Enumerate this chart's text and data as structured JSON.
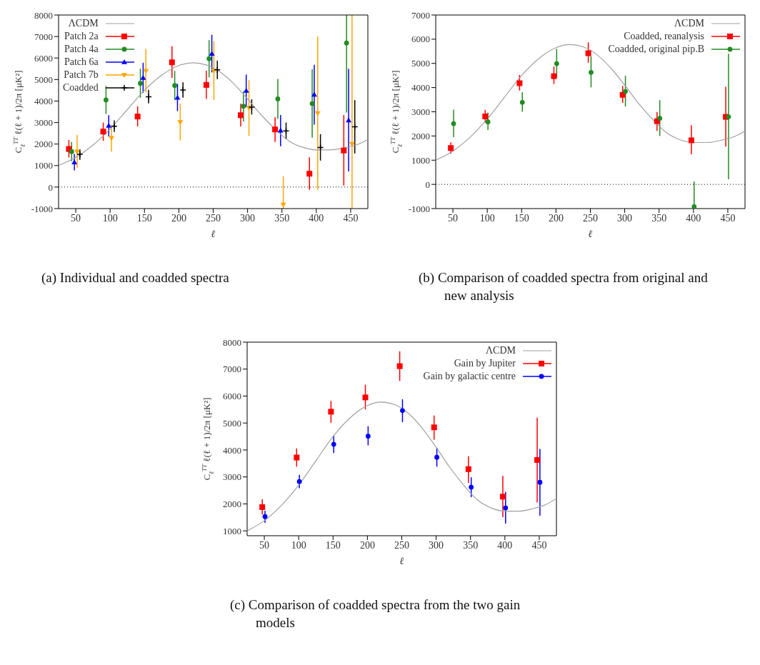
{
  "chart_data": [
    {
      "type": "scatter",
      "title": "(a) Individual and coadded spectra",
      "xlabel": "ℓ",
      "ylabel": "C$_{ℓ}$$^{TT}$ ℓ(ℓ + 1)/2π [μK²]",
      "xlim": [
        25,
        475
      ],
      "xticks": [
        50,
        100,
        150,
        200,
        250,
        300,
        350,
        400,
        450
      ],
      "ylim": [
        -1000,
        8000
      ],
      "yticks": [
        -1000,
        0,
        1000,
        2000,
        3000,
        4000,
        5000,
        6000,
        7000,
        8000
      ],
      "legend": "top left",
      "ref_lines": [
        {
          "axis": "y",
          "value": 0,
          "color": "#000000",
          "line_style": "dotted"
        }
      ],
      "series": [
        {
          "name": "ΛCDM",
          "type": "line",
          "color": "#a0a0a0",
          "marker": "none",
          "line_style": "solid",
          "x": [
            25,
            50,
            75,
            100,
            125,
            150,
            175,
            200,
            220,
            240,
            260,
            280,
            300,
            320,
            340,
            360,
            380,
            400,
            420,
            440,
            460,
            475
          ],
          "values": [
            1000,
            1380,
            1950,
            2700,
            3600,
            4500,
            5200,
            5650,
            5780,
            5680,
            5350,
            4800,
            4100,
            3350,
            2700,
            2150,
            1850,
            1730,
            1730,
            1820,
            1980,
            2200
          ]
        },
        {
          "name": "Patch 2a",
          "type": "scatter",
          "color": "#ff0000",
          "marker": "square",
          "x": [
            40,
            90,
            140,
            190,
            240,
            290,
            340,
            390,
            440
          ],
          "values": [
            1770,
            2580,
            3280,
            5800,
            4750,
            3340,
            2680,
            620,
            1700
          ],
          "errors": [
            [
              1370,
              2190
            ],
            [
              2150,
              3000
            ],
            [
              2820,
              3760
            ],
            [
              5080,
              6550
            ],
            [
              4100,
              5410
            ],
            [
              2820,
              3870
            ],
            [
              2100,
              3250
            ],
            [
              -130,
              1380
            ],
            [
              70,
              3350
            ]
          ]
        },
        {
          "name": "Patch 4a",
          "type": "scatter",
          "color": "#228b22",
          "marker": "circle",
          "x": [
            44,
            94,
            144,
            194,
            244,
            294,
            344,
            394,
            444
          ],
          "values": [
            1650,
            4050,
            4820,
            4720,
            5970,
            3760,
            4100,
            3880,
            6700
          ],
          "errors": [
            [
              1200,
              2100
            ],
            [
              3400,
              4700
            ],
            [
              4150,
              5500
            ],
            [
              4050,
              5400
            ],
            [
              5100,
              6830
            ],
            [
              3050,
              4450
            ],
            [
              3170,
              5030
            ],
            [
              2300,
              5480
            ],
            [
              3470,
              8000
            ]
          ]
        },
        {
          "name": "Patch 6a",
          "type": "scatter",
          "color": "#0000ff",
          "marker": "triangle",
          "x": [
            48,
            98,
            148,
            198,
            248,
            298,
            348,
            397,
            447
          ],
          "values": [
            1150,
            2850,
            5080,
            4160,
            6200,
            4480,
            2630,
            4300,
            3100
          ],
          "errors": [
            [
              780,
              1540
            ],
            [
              2350,
              3340
            ],
            [
              4380,
              5780
            ],
            [
              3530,
              4800
            ],
            [
              5330,
              7080
            ],
            [
              3730,
              5230
            ],
            [
              1900,
              3350
            ],
            [
              2900,
              5680
            ],
            [
              730,
              5500
            ]
          ]
        },
        {
          "name": "Patch 7b",
          "type": "scatter",
          "color": "#ffa500",
          "marker": "triangle-down",
          "x": [
            52,
            102,
            152,
            202,
            251,
            302,
            352,
            402,
            452
          ],
          "values": [
            1650,
            2280,
            5400,
            3020,
            5400,
            3680,
            -820,
            3430,
            2000
          ],
          "errors": [
            [
              900,
              2420
            ],
            [
              1650,
              2900
            ],
            [
              4400,
              6420
            ],
            [
              2170,
              3870
            ],
            [
              4050,
              6780
            ],
            [
              2380,
              4970
            ],
            [
              -1000,
              500
            ],
            [
              -130,
              7000
            ],
            [
              -1000,
              8000
            ]
          ]
        },
        {
          "name": "Coadded",
          "type": "scatter",
          "color": "#000000",
          "marker": "cross",
          "x": [
            56,
            106,
            156,
            206,
            256,
            306,
            356,
            406,
            456
          ],
          "values": [
            1520,
            2830,
            4200,
            4510,
            5450,
            3720,
            2610,
            1840,
            2800
          ],
          "errors": [
            [
              1270,
              1760
            ],
            [
              2560,
              3100
            ],
            [
              3890,
              4520
            ],
            [
              4160,
              4870
            ],
            [
              5020,
              5880
            ],
            [
              3370,
              4080
            ],
            [
              2220,
              3000
            ],
            [
              1230,
              2460
            ],
            [
              1560,
              4040
            ]
          ]
        }
      ]
    },
    {
      "type": "scatter",
      "title": "(b) Comparison of coadded spectra from original and new analysis",
      "xlabel": "ℓ",
      "ylabel": "C$_{ℓ}$$^{TT}$ ℓ(ℓ + 1)/2π [μK²]",
      "xlim": [
        25,
        475
      ],
      "xticks": [
        50,
        100,
        150,
        200,
        250,
        300,
        350,
        400,
        450
      ],
      "ylim": [
        -1000,
        7000
      ],
      "yticks": [
        -1000,
        0,
        1000,
        2000,
        3000,
        4000,
        5000,
        6000,
        7000
      ],
      "legend": "top right",
      "ref_lines": [
        {
          "axis": "y",
          "value": 0,
          "color": "#000000",
          "line_style": "dotted"
        }
      ],
      "series": [
        {
          "name": "ΛCDM",
          "type": "line",
          "color": "#a0a0a0",
          "marker": "none",
          "line_style": "solid",
          "x": [
            25,
            50,
            75,
            100,
            125,
            150,
            175,
            200,
            220,
            240,
            260,
            280,
            300,
            320,
            340,
            360,
            380,
            400,
            420,
            440,
            460,
            475
          ],
          "values": [
            1000,
            1380,
            1950,
            2700,
            3600,
            4500,
            5200,
            5650,
            5780,
            5680,
            5350,
            4800,
            4100,
            3350,
            2700,
            2150,
            1850,
            1730,
            1730,
            1820,
            1980,
            2200
          ]
        },
        {
          "name": "Coadded, reanalysis",
          "type": "scatter",
          "color": "#ff0000",
          "marker": "square",
          "x": [
            47,
            97,
            147,
            197,
            247,
            297,
            347,
            397,
            447
          ],
          "values": [
            1500,
            2810,
            4180,
            4470,
            5420,
            3700,
            2610,
            1820,
            2790
          ],
          "errors": [
            [
              1270,
              1740
            ],
            [
              2550,
              3080
            ],
            [
              3880,
              4520
            ],
            [
              4150,
              4870
            ],
            [
              5030,
              5870
            ],
            [
              3370,
              4070
            ],
            [
              2210,
              2990
            ],
            [
              1240,
              2450
            ],
            [
              1560,
              4030
            ]
          ]
        },
        {
          "name": "Coadded, original pip.B",
          "type": "scatter",
          "color": "#228b22",
          "marker": "circle",
          "x": [
            51,
            101,
            151,
            201,
            251,
            301,
            351,
            401,
            451
          ],
          "values": [
            2510,
            2580,
            3390,
            4990,
            4630,
            3840,
            2730,
            -920,
            2790
          ],
          "errors": [
            [
              1950,
              3090
            ],
            [
              2250,
              2960
            ],
            [
              3000,
              3810
            ],
            [
              4420,
              5600
            ],
            [
              4010,
              5300
            ],
            [
              3220,
              4490
            ],
            [
              2000,
              3480
            ],
            [
              -1000,
              120
            ],
            [
              210,
              5400
            ]
          ]
        }
      ]
    },
    {
      "type": "scatter",
      "title": "(c) Comparison of coadded spectra from the two gain models",
      "xlabel": "ℓ",
      "ylabel": "C$_{ℓ}$$^{TT}$ ℓ(ℓ + 1)/2π [μK²]",
      "xlim": [
        25,
        475
      ],
      "xticks": [
        50,
        100,
        150,
        200,
        250,
        300,
        350,
        400,
        450
      ],
      "ylim": [
        820,
        8000
      ],
      "yticks": [
        1000,
        2000,
        3000,
        4000,
        5000,
        6000,
        7000,
        8000
      ],
      "legend": "top right",
      "series": [
        {
          "name": "ΛCDM",
          "type": "line",
          "color": "#a0a0a0",
          "marker": "none",
          "line_style": "solid",
          "x": [
            25,
            50,
            75,
            100,
            125,
            150,
            175,
            200,
            220,
            240,
            260,
            280,
            300,
            320,
            340,
            360,
            380,
            400,
            420,
            440,
            460,
            475
          ],
          "values": [
            1000,
            1380,
            1950,
            2700,
            3600,
            4500,
            5200,
            5650,
            5780,
            5680,
            5350,
            4800,
            4100,
            3350,
            2700,
            2150,
            1850,
            1730,
            1730,
            1820,
            1980,
            2200
          ]
        },
        {
          "name": "Gain by Jupiter",
          "type": "scatter",
          "color": "#ff0000",
          "marker": "square",
          "x": [
            47,
            97,
            147,
            197,
            247,
            297,
            347,
            397,
            447
          ],
          "values": [
            1880,
            3720,
            5420,
            5950,
            7110,
            4840,
            3290,
            2270,
            3630
          ],
          "errors": [
            [
              1610,
              2170
            ],
            [
              3380,
              4060
            ],
            [
              5010,
              5820
            ],
            [
              5500,
              6420
            ],
            [
              6560,
              7660
            ],
            [
              4380,
              5280
            ],
            [
              2780,
              3770
            ],
            [
              1510,
              3040
            ],
            [
              2050,
              5200
            ]
          ]
        },
        {
          "name": "Gain by galactic centre",
          "type": "scatter",
          "color": "#0000ff",
          "marker": "circle",
          "x": [
            51,
            101,
            151,
            201,
            251,
            301,
            351,
            401,
            451
          ],
          "values": [
            1530,
            2830,
            4210,
            4510,
            5460,
            3730,
            2620,
            1850,
            2800
          ],
          "errors": [
            [
              1300,
              1750
            ],
            [
              2580,
              3080
            ],
            [
              3890,
              4530
            ],
            [
              4170,
              4880
            ],
            [
              5030,
              5880
            ],
            [
              3380,
              4080
            ],
            [
              2250,
              2990
            ],
            [
              1270,
              2450
            ],
            [
              1560,
              4040
            ]
          ]
        }
      ]
    }
  ]
}
